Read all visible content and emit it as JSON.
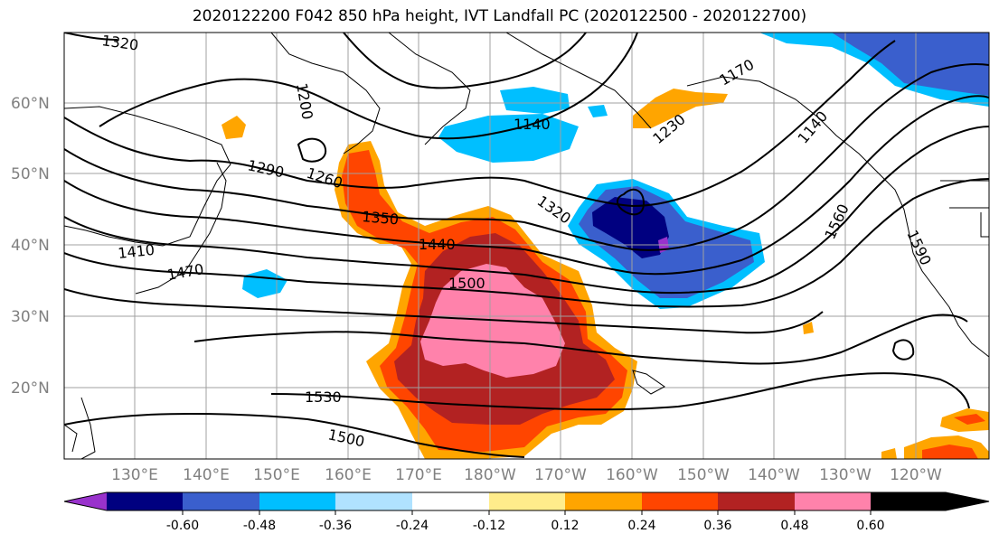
{
  "title": "2020122200 F042 850 hPa height, IVT Landfall PC (2020122500 - 2020122700)",
  "lat_labels": [
    "60°N",
    "50°N",
    "40°N",
    "30°N",
    "20°N"
  ],
  "lon_labels": [
    "130°E",
    "140°E",
    "150°E",
    "160°E",
    "170°E",
    "180°W",
    "170°W",
    "160°W",
    "150°W",
    "140°W",
    "130°W",
    "120°W"
  ],
  "contour_labels": [
    "1320",
    "1200",
    "1140",
    "1170",
    "1290",
    "1260",
    "1350",
    "1440",
    "1500",
    "1410",
    "1470",
    "1320",
    "1230",
    "1140",
    "1560",
    "1590",
    "1530",
    "1500"
  ],
  "colorbar": {
    "colors": [
      "#9932cc",
      "#000080",
      "#3a5fcd",
      "#00bfff",
      "#b0e2ff",
      "#ffffff",
      "#ffec8b",
      "#ffa500",
      "#ff4500",
      "#b22222",
      "#ff82ab"
    ],
    "tick_labels": [
      "-0.60",
      "-0.48",
      "-0.36",
      "-0.24",
      "-0.12",
      "0.12",
      "0.24",
      "0.36",
      "0.48",
      "0.60"
    ]
  }
}
